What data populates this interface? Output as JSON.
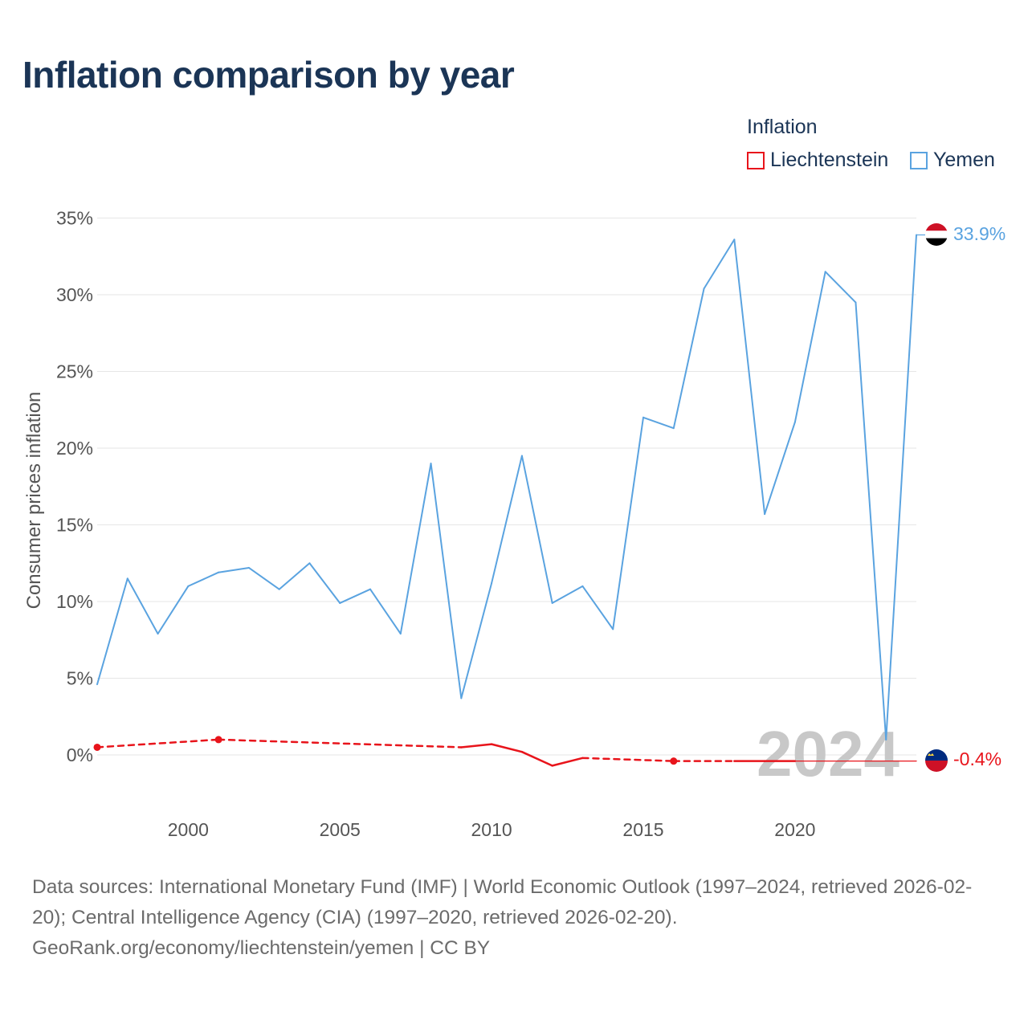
{
  "title": "Inflation comparison by year",
  "legend": {
    "title": "Inflation",
    "items": [
      {
        "label": "Liechtenstein",
        "color": "#e8141b"
      },
      {
        "label": "Yemen",
        "color": "#5aa3e0"
      }
    ]
  },
  "source": {
    "line1": "Data sources: International Monetary Fund (IMF) | World Economic Outlook (1997–2024, retrieved 2026-02-20); Central Intelligence Agency (CIA) (1997–2020, retrieved 2026-02-20).",
    "line2": "GeoRank.org/economy/liechtenstein/yemen | CC BY"
  },
  "chart_data": {
    "type": "line",
    "title": "Inflation comparison by year",
    "xlabel": "",
    "ylabel": "Consumer prices inflation",
    "xlim": [
      1997,
      2024
    ],
    "ylim": [
      -3,
      36
    ],
    "yticks": [
      0,
      5,
      10,
      15,
      20,
      25,
      30,
      35
    ],
    "ytick_labels": [
      "0%",
      "5%",
      "10%",
      "15%",
      "20%",
      "25%",
      "30%",
      "35%"
    ],
    "xticks": [
      2000,
      2005,
      2010,
      2015,
      2020
    ],
    "xtick_labels": [
      "2000",
      "2005",
      "2010",
      "2015",
      "2020"
    ],
    "year_watermark": "2024",
    "series": [
      {
        "name": "Yemen",
        "color": "#5aa3e0",
        "end_label": "33.9%",
        "points": [
          [
            1997,
            4.6
          ],
          [
            1998,
            11.5
          ],
          [
            1999,
            7.9
          ],
          [
            2000,
            11.0
          ],
          [
            2001,
            11.9
          ],
          [
            2002,
            12.2
          ],
          [
            2003,
            10.8
          ],
          [
            2004,
            12.5
          ],
          [
            2005,
            9.9
          ],
          [
            2006,
            10.8
          ],
          [
            2007,
            7.9
          ],
          [
            2008,
            19.0
          ],
          [
            2009,
            3.7
          ],
          [
            2010,
            11.2
          ],
          [
            2011,
            19.5
          ],
          [
            2012,
            9.9
          ],
          [
            2013,
            11.0
          ],
          [
            2014,
            8.2
          ],
          [
            2015,
            22.0
          ],
          [
            2016,
            21.3
          ],
          [
            2017,
            30.4
          ],
          [
            2018,
            33.6
          ],
          [
            2019,
            15.7
          ],
          [
            2020,
            21.7
          ],
          [
            2021,
            31.5
          ],
          [
            2022,
            29.5
          ],
          [
            2023,
            1.0
          ],
          [
            2024,
            33.9
          ]
        ]
      },
      {
        "name": "Liechtenstein",
        "color": "#e8141b",
        "end_label": "-0.4%",
        "points": [
          [
            1997,
            0.5
          ],
          [
            2001,
            1.0
          ],
          [
            2009,
            0.5
          ],
          [
            2010,
            0.7
          ],
          [
            2011,
            0.2
          ],
          [
            2012,
            -0.7
          ],
          [
            2013,
            -0.2
          ],
          [
            2016,
            -0.4
          ],
          [
            2018,
            -0.4
          ],
          [
            2019,
            -0.4
          ],
          [
            2020,
            -0.4
          ],
          [
            2024,
            -0.4
          ]
        ],
        "markers": [
          [
            1997,
            0.5
          ],
          [
            2001,
            1.0
          ],
          [
            2016,
            -0.4
          ]
        ],
        "dashed_segments": [
          [
            1997,
            2001
          ],
          [
            2001,
            2009
          ],
          [
            2013,
            2016
          ],
          [
            2016,
            2018
          ]
        ]
      }
    ]
  }
}
